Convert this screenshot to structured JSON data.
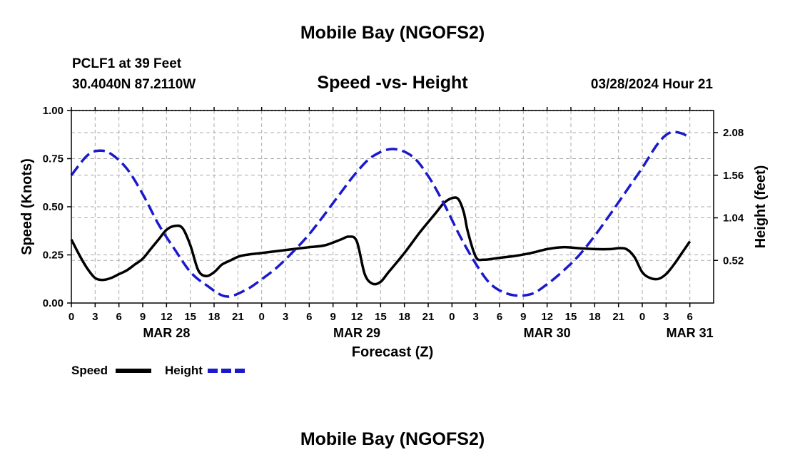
{
  "header": {
    "title": "Mobile Bay (NGOFS2)",
    "station": "PCLF1 at 39 Feet",
    "coords": "30.4040N  87.2110W",
    "subtitle": "Speed -vs- Height",
    "datetime": "03/28/2024 Hour 21"
  },
  "footer": {
    "title": "Mobile Bay (NGOFS2)"
  },
  "colors": {
    "speed": "#000000",
    "height": "#1a1acc",
    "grid": "#aaaaaa"
  },
  "chart_data": {
    "type": "line",
    "xlabel": "Forecast (Z)",
    "ylabel": "Speed (Knots)",
    "y2label": "Height (feet)",
    "x_range_hours": [
      0,
      81
    ],
    "xticks": [
      {
        "h": 0,
        "label": "0"
      },
      {
        "h": 3,
        "label": "3"
      },
      {
        "h": 6,
        "label": "6"
      },
      {
        "h": 9,
        "label": "9"
      },
      {
        "h": 12,
        "label": "12"
      },
      {
        "h": 15,
        "label": "15"
      },
      {
        "h": 18,
        "label": "18"
      },
      {
        "h": 21,
        "label": "21"
      },
      {
        "h": 24,
        "label": "0"
      },
      {
        "h": 27,
        "label": "3"
      },
      {
        "h": 30,
        "label": "6"
      },
      {
        "h": 33,
        "label": "9"
      },
      {
        "h": 36,
        "label": "12"
      },
      {
        "h": 39,
        "label": "15"
      },
      {
        "h": 42,
        "label": "18"
      },
      {
        "h": 45,
        "label": "21"
      },
      {
        "h": 48,
        "label": "0"
      },
      {
        "h": 51,
        "label": "3"
      },
      {
        "h": 54,
        "label": "6"
      },
      {
        "h": 57,
        "label": "9"
      },
      {
        "h": 60,
        "label": "12"
      },
      {
        "h": 63,
        "label": "15"
      },
      {
        "h": 66,
        "label": "18"
      },
      {
        "h": 69,
        "label": "21"
      },
      {
        "h": 72,
        "label": "0"
      },
      {
        "h": 75,
        "label": "3"
      },
      {
        "h": 78,
        "label": "6"
      }
    ],
    "date_labels": [
      {
        "h": 12,
        "label": "MAR 28"
      },
      {
        "h": 36,
        "label": "MAR 29"
      },
      {
        "h": 60,
        "label": "MAR 30"
      },
      {
        "h": 78,
        "label": "MAR 31"
      }
    ],
    "ylim": [
      0,
      1.0
    ],
    "yticks": [
      {
        "v": 0,
        "label": "0.00"
      },
      {
        "v": 0.25,
        "label": "0.25"
      },
      {
        "v": 0.5,
        "label": "0.50"
      },
      {
        "v": 0.75,
        "label": "0.75"
      },
      {
        "v": 1.0,
        "label": "1.00"
      }
    ],
    "y2lim": [
      0,
      2.35
    ],
    "y2ticks": [
      {
        "v": 0.52,
        "label": "0.52"
      },
      {
        "v": 1.04,
        "label": "1.04"
      },
      {
        "v": 1.56,
        "label": "1.56"
      },
      {
        "v": 2.08,
        "label": "2.08"
      }
    ],
    "series": [
      {
        "name": "Speed",
        "axis": "left",
        "style": "solid",
        "x": [
          0,
          1,
          2,
          3,
          4,
          5,
          6,
          7,
          8,
          9,
          10,
          11,
          12,
          13,
          14,
          15,
          16,
          17,
          18,
          19,
          20,
          21,
          22,
          24,
          26,
          28,
          30,
          32,
          34,
          35,
          36,
          37,
          38,
          39,
          40,
          42,
          44,
          46,
          47,
          48,
          48.8,
          49.5,
          50,
          51,
          52,
          54,
          56,
          58,
          60,
          62,
          64,
          66,
          68,
          69,
          70,
          71,
          72,
          73,
          74,
          75,
          76,
          77,
          78
        ],
        "values": [
          0.33,
          0.25,
          0.18,
          0.13,
          0.12,
          0.13,
          0.15,
          0.17,
          0.2,
          0.23,
          0.28,
          0.33,
          0.38,
          0.4,
          0.39,
          0.3,
          0.17,
          0.14,
          0.16,
          0.2,
          0.22,
          0.24,
          0.25,
          0.26,
          0.27,
          0.28,
          0.29,
          0.3,
          0.33,
          0.345,
          0.32,
          0.15,
          0.1,
          0.11,
          0.16,
          0.26,
          0.37,
          0.47,
          0.52,
          0.545,
          0.54,
          0.47,
          0.37,
          0.24,
          0.225,
          0.235,
          0.245,
          0.26,
          0.28,
          0.29,
          0.285,
          0.28,
          0.28,
          0.285,
          0.28,
          0.24,
          0.16,
          0.13,
          0.125,
          0.15,
          0.2,
          0.26,
          0.32
        ]
      },
      {
        "name": "Height",
        "axis": "right",
        "style": "dashed",
        "x": [
          0,
          2,
          3.5,
          5,
          7,
          9,
          11,
          13,
          15,
          17,
          19.5,
          22,
          24,
          26,
          28,
          30,
          32,
          34,
          36,
          38,
          40.5,
          43,
          45,
          47,
          49,
          51,
          53,
          55.5,
          58,
          60,
          62,
          64,
          66,
          68,
          70,
          72,
          74,
          75.5,
          77,
          78
        ],
        "values": [
          1.56,
          1.8,
          1.86,
          1.82,
          1.64,
          1.33,
          0.96,
          0.66,
          0.38,
          0.22,
          0.08,
          0.16,
          0.29,
          0.44,
          0.63,
          0.84,
          1.09,
          1.35,
          1.6,
          1.79,
          1.88,
          1.79,
          1.55,
          1.21,
          0.82,
          0.48,
          0.22,
          0.1,
          0.11,
          0.23,
          0.39,
          0.58,
          0.82,
          1.09,
          1.37,
          1.65,
          1.95,
          2.08,
          2.07,
          2.01
        ]
      }
    ],
    "legend": [
      {
        "label": "Speed",
        "style": "solid"
      },
      {
        "label": "Height",
        "style": "dashed"
      }
    ]
  }
}
